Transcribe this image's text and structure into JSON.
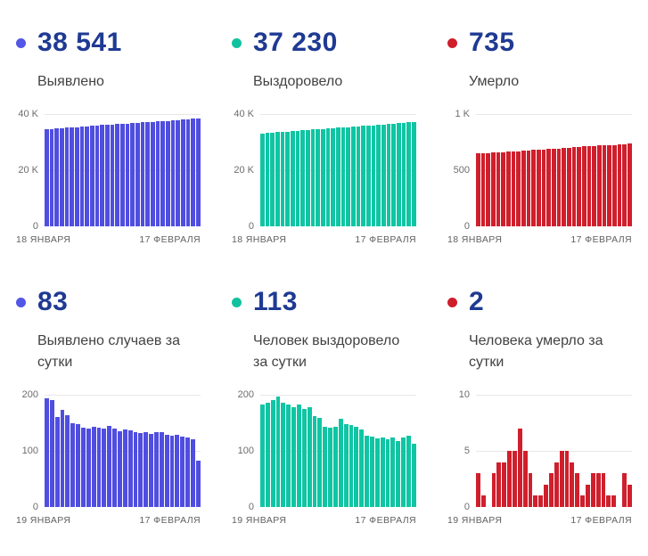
{
  "page": {
    "background": "#ffffff"
  },
  "colors": {
    "stat_value_text": "#1f3a93",
    "stat_label_text": "#424242",
    "axis_text": "#6d6d6d",
    "gridline": "#e8e8e8",
    "blue": "#504ee0",
    "teal": "#10c5a3",
    "red": "#d01f2c"
  },
  "chart_data": [
    {
      "type": "bar",
      "title": "Выявлено",
      "stat_value": "38 541",
      "dot_color": "#5456e8",
      "color": "#504ee0",
      "ylim": [
        0,
        40000
      ],
      "yticks": [
        "40 K",
        "20 K",
        "0"
      ],
      "x_start": "18 ЯНВАРЯ",
      "x_end": "17 ФЕВРАЛЯ",
      "grid": "horizontal",
      "values": [
        34600,
        34740,
        34880,
        35010,
        35140,
        35270,
        35400,
        35530,
        35660,
        35790,
        35920,
        36050,
        36180,
        36300,
        36420,
        36540,
        36660,
        36780,
        36900,
        37020,
        37140,
        37260,
        37380,
        37500,
        37620,
        37740,
        37870,
        38000,
        38150,
        38320,
        38541
      ]
    },
    {
      "type": "bar",
      "title": "Выздоровело",
      "stat_value": "37 230",
      "dot_color": "#12c29e",
      "color": "#10c5a3",
      "ylim": [
        0,
        40000
      ],
      "yticks": [
        "40 K",
        "20 K",
        "0"
      ],
      "x_start": "18 ЯНВАРЯ",
      "x_end": "17 ФЕВРАЛЯ",
      "grid": "horizontal",
      "values": [
        33100,
        33240,
        33380,
        33520,
        33660,
        33800,
        33940,
        34080,
        34210,
        34340,
        34470,
        34600,
        34730,
        34860,
        34990,
        35120,
        35250,
        35380,
        35510,
        35640,
        35770,
        35900,
        36030,
        36160,
        36290,
        36420,
        36550,
        36690,
        36830,
        37020,
        37230
      ]
    },
    {
      "type": "bar",
      "title": "Умерло",
      "stat_value": "735",
      "dot_color": "#cf1e2b",
      "color": "#d01f2c",
      "ylim": [
        0,
        1000
      ],
      "yticks": [
        "1 K",
        "500",
        "0"
      ],
      "x_start": "18 ЯНВАРЯ",
      "x_end": "17 ФЕВРАЛЯ",
      "grid": "horizontal",
      "values": [
        648,
        650,
        652,
        655,
        658,
        661,
        664,
        667,
        670,
        673,
        676,
        679,
        682,
        685,
        688,
        691,
        694,
        697,
        700,
        703,
        706,
        712,
        715,
        718,
        720,
        722,
        724,
        726,
        728,
        731,
        735
      ]
    },
    {
      "type": "bar",
      "title": "Выявлено случаев за сутки",
      "stat_value": "83",
      "dot_color": "#5456e8",
      "color": "#504ee0",
      "ylim": [
        0,
        200
      ],
      "yticks": [
        "200",
        "100",
        "0"
      ],
      "x_start": "19 ЯНВАРЯ",
      "x_end": "17 ФЕВРАЛЯ",
      "grid": "horizontal",
      "values": [
        193,
        190,
        160,
        173,
        163,
        150,
        147,
        142,
        140,
        143,
        141,
        140,
        145,
        139,
        135,
        138,
        136,
        133,
        131,
        133,
        130,
        134,
        133,
        129,
        127,
        129,
        125,
        124,
        121,
        83
      ]
    },
    {
      "type": "bar",
      "title": "Человек выздоровело за сутки",
      "stat_value": "113",
      "dot_color": "#12c29e",
      "color": "#10c5a3",
      "ylim": [
        0,
        200
      ],
      "yticks": [
        "200",
        "100",
        "0"
      ],
      "x_start": "19 ЯНВАРЯ",
      "x_end": "17 ФЕВРАЛЯ",
      "grid": "horizontal",
      "values": [
        183,
        186,
        190,
        197,
        186,
        183,
        178,
        183,
        175,
        178,
        162,
        158,
        143,
        141,
        143,
        157,
        148,
        146,
        143,
        138,
        127,
        125,
        122,
        124,
        121,
        124,
        118,
        124,
        127,
        113
      ]
    },
    {
      "type": "bar",
      "title": "Человека умерло за сутки",
      "stat_value": "2",
      "dot_color": "#cf1e2b",
      "color": "#d01f2c",
      "ylim": [
        0,
        10
      ],
      "yticks": [
        "10",
        "5",
        "0"
      ],
      "x_start": "19 ЯНВАРЯ",
      "x_end": "17 ФЕВРАЛЯ",
      "grid": "horizontal",
      "values": [
        3,
        1,
        0,
        3,
        4,
        4,
        5,
        5,
        7,
        5,
        3,
        1,
        1,
        2,
        3,
        4,
        5,
        5,
        4,
        3,
        1,
        2,
        3,
        3,
        3,
        1,
        1,
        0,
        3,
        2
      ]
    }
  ]
}
